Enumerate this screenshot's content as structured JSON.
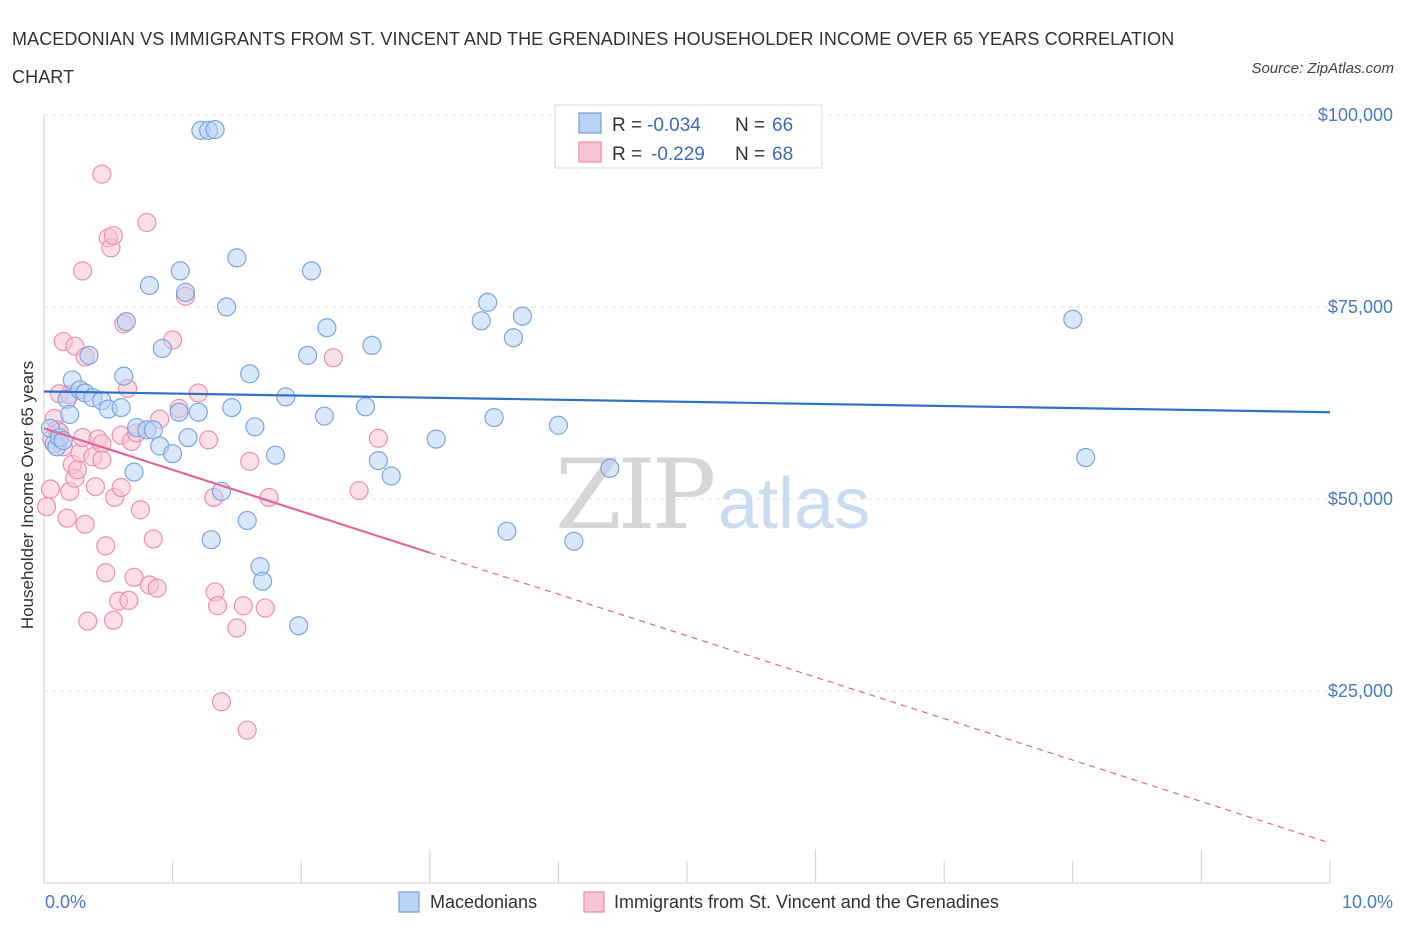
{
  "title": "MACEDONIAN VS IMMIGRANTS FROM ST. VINCENT AND THE GRENADINES HOUSEHOLDER INCOME OVER 65 YEARS CORRELATION CHART",
  "source": "Source: ZipAtlas.com",
  "watermark": {
    "zip": "ZIP",
    "atlas": "atlas"
  },
  "colors": {
    "blue_fill": "#b9d3f5",
    "blue_stroke": "#7aa6e0",
    "blue_line": "#2f72c4",
    "pink_fill": "#f8c3d4",
    "pink_stroke": "#ee8fb0",
    "pink_line": "#e0679a",
    "grid": "#e3e3e3",
    "axis_text": "#4a7cc0"
  },
  "chart_data": {
    "type": "scatter",
    "title": "MACEDONIAN VS IMMIGRANTS FROM ST. VINCENT AND THE GRENADINES HOUSEHOLDER INCOME OVER 65 YEARS CORRELATION CHART",
    "xlabel": "",
    "ylabel": "Householder Income Over 65 years",
    "xlim": [
      0,
      10
    ],
    "ylim": [
      0,
      100000
    ],
    "x_tick_labels": [
      "0.0%",
      "10.0%"
    ],
    "y_ticks": [
      25000,
      50000,
      75000,
      100000
    ],
    "y_tick_labels": [
      "$25,000",
      "$50,000",
      "$75,000",
      "$100,000"
    ],
    "grid": true,
    "stats": [
      {
        "r_label": "R =",
        "r": "-0.034",
        "n_label": "N =",
        "n": "66"
      },
      {
        "r_label": "R =",
        "r": "-0.229",
        "n_label": "N =",
        "n": "68"
      }
    ],
    "series": [
      {
        "name": "Macedonians",
        "color": "#b9d3f5",
        "trend": {
          "x0": 0.0,
          "y0": 64000,
          "x1": 10.0,
          "y1": 61300,
          "solid_until": 10.0
        },
        "points": [
          [
            0.05,
            59200
          ],
          [
            0.08,
            57200
          ],
          [
            0.1,
            56800
          ],
          [
            0.12,
            58000
          ],
          [
            0.15,
            57600
          ],
          [
            0.18,
            63000
          ],
          [
            0.2,
            61000
          ],
          [
            0.22,
            65500
          ],
          [
            0.28,
            64200
          ],
          [
            0.32,
            63800
          ],
          [
            0.35,
            68700
          ],
          [
            0.38,
            63200
          ],
          [
            0.45,
            62800
          ],
          [
            0.5,
            61700
          ],
          [
            0.6,
            61900
          ],
          [
            0.62,
            66000
          ],
          [
            0.64,
            73100
          ],
          [
            0.7,
            53500
          ],
          [
            0.72,
            59300
          ],
          [
            0.8,
            59000
          ],
          [
            0.82,
            77800
          ],
          [
            0.85,
            59000
          ],
          [
            0.9,
            56900
          ],
          [
            0.92,
            69600
          ],
          [
            1.0,
            55900
          ],
          [
            1.05,
            61300
          ],
          [
            1.06,
            79700
          ],
          [
            1.1,
            76900
          ],
          [
            1.12,
            58000
          ],
          [
            1.2,
            61300
          ],
          [
            1.22,
            98000
          ],
          [
            1.28,
            98000
          ],
          [
            1.33,
            98100
          ],
          [
            1.3,
            44700
          ],
          [
            1.38,
            51000
          ],
          [
            1.42,
            75000
          ],
          [
            1.46,
            61900
          ],
          [
            1.5,
            81400
          ],
          [
            1.58,
            47200
          ],
          [
            1.6,
            66300
          ],
          [
            1.64,
            59400
          ],
          [
            1.68,
            41200
          ],
          [
            1.7,
            39300
          ],
          [
            1.8,
            55700
          ],
          [
            1.88,
            63300
          ],
          [
            1.98,
            33500
          ],
          [
            2.05,
            68700
          ],
          [
            2.08,
            79700
          ],
          [
            2.18,
            60800
          ],
          [
            2.2,
            72300
          ],
          [
            2.5,
            62000
          ],
          [
            2.55,
            70000
          ],
          [
            2.6,
            55000
          ],
          [
            2.7,
            53000
          ],
          [
            3.05,
            57800
          ],
          [
            3.4,
            73200
          ],
          [
            3.45,
            75600
          ],
          [
            3.5,
            60600
          ],
          [
            3.6,
            45800
          ],
          [
            3.65,
            71000
          ],
          [
            3.72,
            73800
          ],
          [
            4.0,
            59600
          ],
          [
            4.12,
            44500
          ],
          [
            4.4,
            54000
          ],
          [
            8.0,
            73400
          ],
          [
            8.1,
            55400
          ]
        ]
      },
      {
        "name": "Immigrants from St. Vincent and the Grenadines",
        "color": "#f8c3d4",
        "trend": {
          "x0": 0.0,
          "y0": 59200,
          "x1": 10.0,
          "y1": 5200,
          "solid_until": 3.0
        },
        "points": [
          [
            0.02,
            49000
          ],
          [
            0.05,
            51300
          ],
          [
            0.06,
            57800
          ],
          [
            0.08,
            60500
          ],
          [
            0.1,
            59000
          ],
          [
            0.12,
            63700
          ],
          [
            0.12,
            58700
          ],
          [
            0.15,
            70500
          ],
          [
            0.15,
            56800
          ],
          [
            0.18,
            47500
          ],
          [
            0.2,
            51000
          ],
          [
            0.2,
            63600
          ],
          [
            0.22,
            54500
          ],
          [
            0.24,
            69900
          ],
          [
            0.24,
            52700
          ],
          [
            0.26,
            53800
          ],
          [
            0.28,
            56000
          ],
          [
            0.3,
            58000
          ],
          [
            0.32,
            68500
          ],
          [
            0.3,
            79700
          ],
          [
            0.32,
            46700
          ],
          [
            0.34,
            34100
          ],
          [
            0.38,
            55500
          ],
          [
            0.4,
            51600
          ],
          [
            0.42,
            57800
          ],
          [
            0.45,
            92300
          ],
          [
            0.45,
            57200
          ],
          [
            0.45,
            55100
          ],
          [
            0.48,
            43900
          ],
          [
            0.48,
            40400
          ],
          [
            0.5,
            84000
          ],
          [
            0.52,
            82700
          ],
          [
            0.54,
            84300
          ],
          [
            0.54,
            34200
          ],
          [
            0.55,
            50200
          ],
          [
            0.58,
            36700
          ],
          [
            0.6,
            51500
          ],
          [
            0.6,
            58300
          ],
          [
            0.62,
            72800
          ],
          [
            0.65,
            64400
          ],
          [
            0.68,
            57500
          ],
          [
            0.7,
            39800
          ],
          [
            0.72,
            58600
          ],
          [
            0.75,
            48600
          ],
          [
            0.82,
            38800
          ],
          [
            0.85,
            44800
          ],
          [
            0.88,
            38400
          ],
          [
            0.8,
            86000
          ],
          [
            0.9,
            60400
          ],
          [
            1.0,
            70700
          ],
          [
            1.05,
            61800
          ],
          [
            1.1,
            76400
          ],
          [
            1.2,
            63800
          ],
          [
            1.28,
            57700
          ],
          [
            1.32,
            50200
          ],
          [
            1.33,
            37900
          ],
          [
            1.35,
            36100
          ],
          [
            1.38,
            23600
          ],
          [
            1.5,
            33200
          ],
          [
            1.55,
            36100
          ],
          [
            1.58,
            19900
          ],
          [
            1.6,
            54900
          ],
          [
            1.72,
            35800
          ],
          [
            1.75,
            50200
          ],
          [
            2.25,
            68400
          ],
          [
            2.45,
            51100
          ],
          [
            2.6,
            57900
          ],
          [
            0.66,
            36800
          ]
        ]
      }
    ]
  },
  "legend": {
    "items": [
      {
        "label": "Macedonians"
      },
      {
        "label": "Immigrants from St. Vincent and the Grenadines"
      }
    ]
  }
}
